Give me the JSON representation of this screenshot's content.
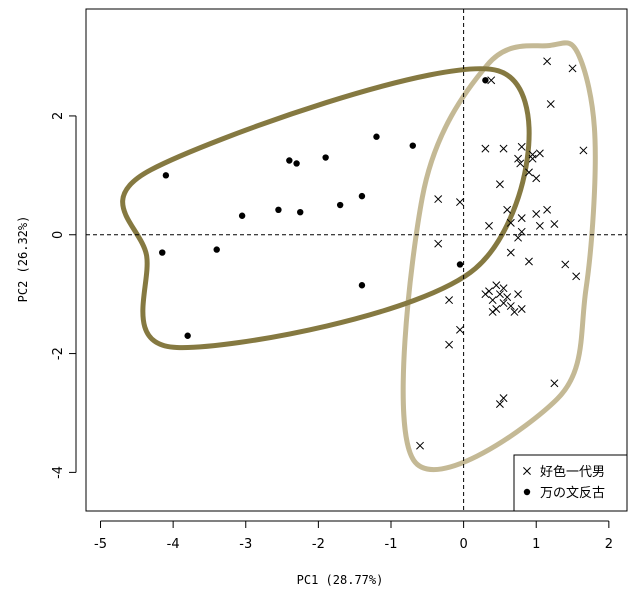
{
  "chart_data": {
    "type": "scatter",
    "title": "",
    "xlabel": "PC1 (28.77%)",
    "ylabel": "PC2 (26.32%)",
    "xlim": [
      -5.2,
      2.25
    ],
    "ylim": [
      -4.65,
      3.8
    ],
    "x_ticks": [
      -5,
      -4,
      -3,
      -2,
      -1,
      0,
      1,
      2
    ],
    "y_ticks": [
      -4,
      -2,
      0,
      2
    ],
    "x_tick_labels": [
      "-5",
      "-4",
      "-3",
      "-2",
      "-1",
      "0",
      "1",
      "2"
    ],
    "y_tick_labels": [
      "-4",
      "-2",
      "0",
      "2"
    ],
    "reference_lines": {
      "x": 0,
      "y": 0,
      "style": "dashed"
    },
    "legend_position": "bottom-right",
    "series": [
      {
        "name": "好色一代男",
        "marker": "x",
        "hull_color": "#c4b995",
        "points": [
          [
            1.15,
            2.92
          ],
          [
            1.5,
            2.8
          ],
          [
            1.2,
            2.2
          ],
          [
            0.38,
            2.6
          ],
          [
            1.65,
            1.42
          ],
          [
            0.8,
            1.48
          ],
          [
            0.75,
            1.28
          ],
          [
            0.95,
            1.35
          ],
          [
            1.05,
            1.37
          ],
          [
            0.95,
            1.28
          ],
          [
            0.55,
            1.45
          ],
          [
            0.78,
            1.2
          ],
          [
            0.9,
            1.05
          ],
          [
            1.0,
            0.95
          ],
          [
            0.3,
            1.45
          ],
          [
            0.5,
            0.85
          ],
          [
            -0.35,
            0.6
          ],
          [
            -0.05,
            0.55
          ],
          [
            1.0,
            0.35
          ],
          [
            1.15,
            0.42
          ],
          [
            0.6,
            0.42
          ],
          [
            0.8,
            0.28
          ],
          [
            0.65,
            0.2
          ],
          [
            0.35,
            0.15
          ],
          [
            1.05,
            0.15
          ],
          [
            1.25,
            0.18
          ],
          [
            0.8,
            0.05
          ],
          [
            0.75,
            -0.05
          ],
          [
            -0.35,
            -0.15
          ],
          [
            0.65,
            -0.3
          ],
          [
            0.9,
            -0.45
          ],
          [
            1.4,
            -0.5
          ],
          [
            1.55,
            -0.7
          ],
          [
            0.45,
            -0.85
          ],
          [
            0.55,
            -0.9
          ],
          [
            0.35,
            -0.95
          ],
          [
            0.3,
            -1.0
          ],
          [
            0.5,
            -1.0
          ],
          [
            0.6,
            -1.05
          ],
          [
            0.75,
            -1.0
          ],
          [
            0.4,
            -1.1
          ],
          [
            0.55,
            -1.15
          ],
          [
            0.45,
            -1.25
          ],
          [
            0.65,
            -1.2
          ],
          [
            0.8,
            -1.25
          ],
          [
            0.7,
            -1.3
          ],
          [
            0.4,
            -1.3
          ],
          [
            -0.2,
            -1.1
          ],
          [
            -0.05,
            -1.6
          ],
          [
            -0.2,
            -1.85
          ],
          [
            1.25,
            -2.5
          ],
          [
            0.55,
            -2.75
          ],
          [
            0.5,
            -2.85
          ],
          [
            -0.6,
            -3.55
          ]
        ]
      },
      {
        "name": "万の文反古",
        "marker": "dot",
        "hull_color": "#857941",
        "points": [
          [
            0.3,
            2.6
          ],
          [
            -1.2,
            1.65
          ],
          [
            -0.7,
            1.5
          ],
          [
            -1.9,
            1.3
          ],
          [
            -2.4,
            1.25
          ],
          [
            -2.3,
            1.2
          ],
          [
            -4.1,
            1.0
          ],
          [
            -1.4,
            0.65
          ],
          [
            -1.7,
            0.5
          ],
          [
            -2.55,
            0.42
          ],
          [
            -2.25,
            0.38
          ],
          [
            -3.05,
            0.32
          ],
          [
            -3.4,
            -0.25
          ],
          [
            -4.15,
            -0.3
          ],
          [
            -0.05,
            -0.5
          ],
          [
            -1.4,
            -0.85
          ],
          [
            -3.8,
            -1.7
          ]
        ]
      }
    ]
  }
}
